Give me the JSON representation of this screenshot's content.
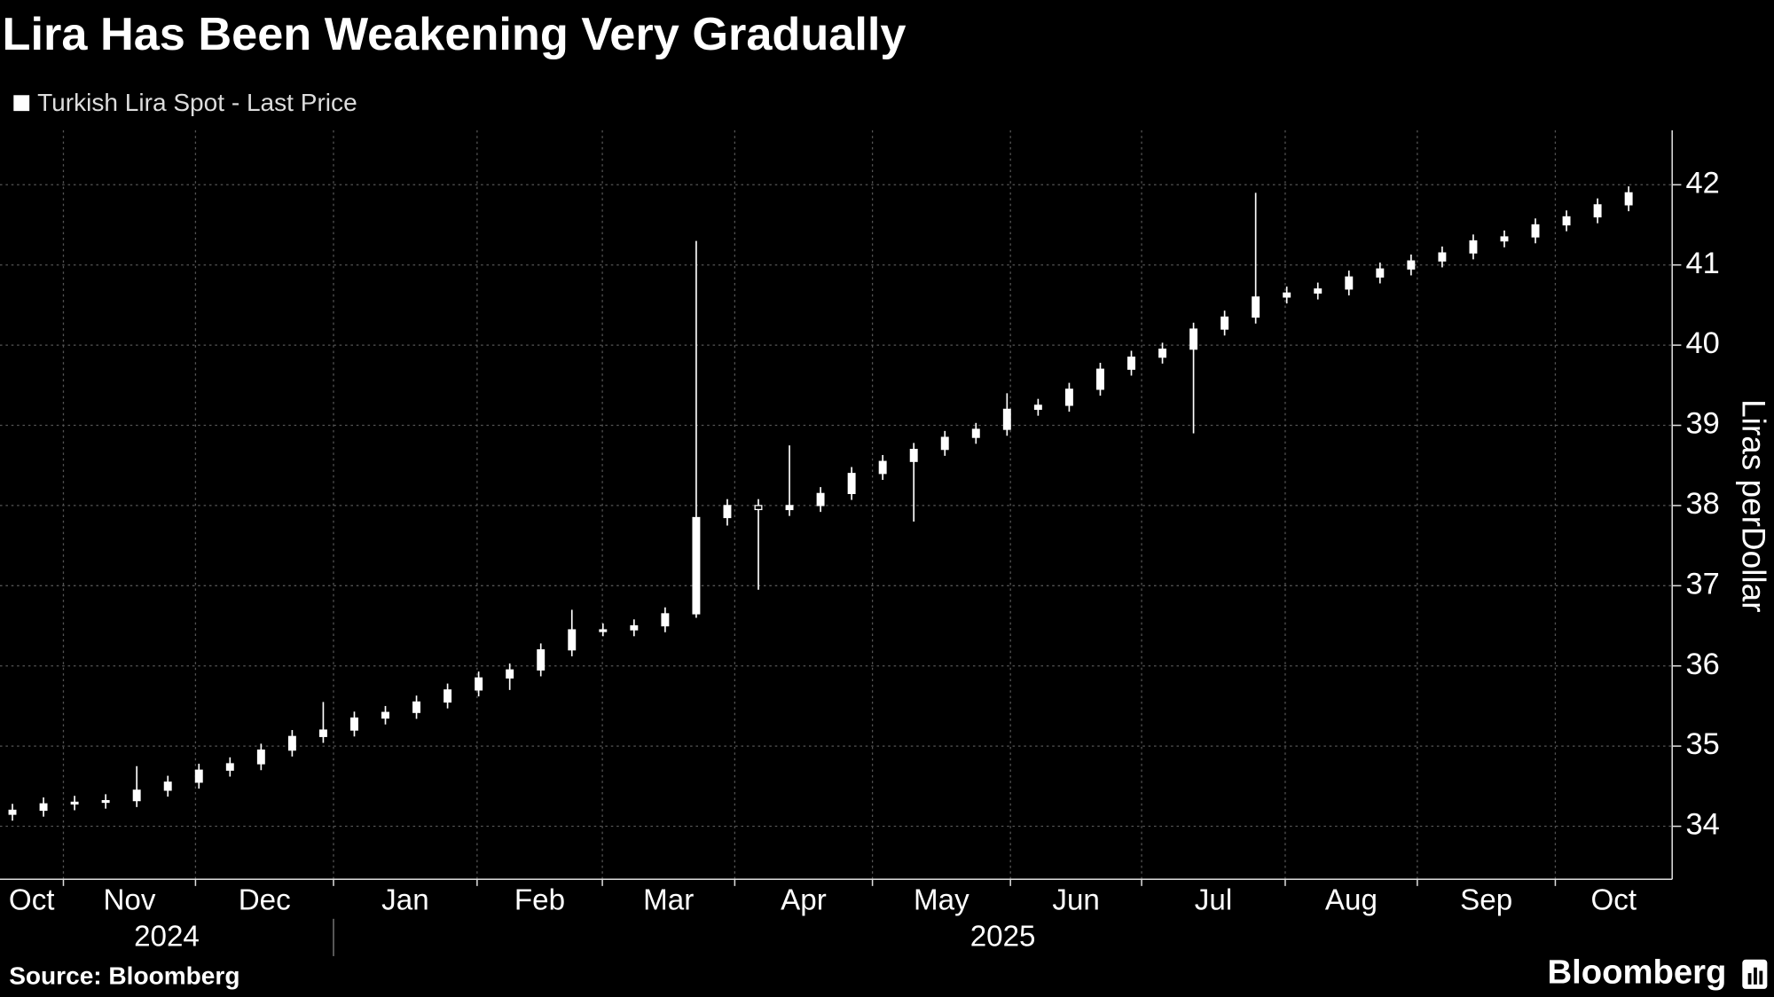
{
  "chart_data": {
    "type": "candlestick",
    "title": "Lira Has Been Weakening Very Gradually",
    "y_label": "Liras perDollar",
    "source": "Source: Bloomberg",
    "brand": "Bloomberg",
    "categories": [
      null,
      null,
      null,
      null,
      null,
      null,
      null,
      null,
      null,
      null,
      null,
      null,
      null,
      null,
      null,
      null,
      null,
      null,
      null,
      null,
      null,
      null,
      null,
      null,
      null,
      null,
      null,
      null,
      null,
      null,
      null,
      null,
      null,
      null,
      null,
      null,
      null,
      null,
      null,
      null,
      null,
      null,
      null,
      null,
      null,
      null,
      null,
      null,
      null,
      null,
      null,
      null,
      null
    ],
    "series": [
      {
        "name": "Turkish Lira Spot - Last Price",
        "color": "#ffffff",
        "open": [
          34.15,
          34.2,
          34.28,
          34.3,
          34.32,
          34.45,
          34.55,
          34.7,
          34.78,
          34.95,
          35.12,
          35.2,
          35.35,
          35.42,
          35.55,
          35.7,
          35.85,
          35.95,
          36.2,
          36.45,
          36.45,
          36.5,
          36.65,
          37.85,
          38.0,
          37.95,
          38.0,
          38.15,
          38.4,
          38.55,
          38.7,
          38.85,
          38.95,
          39.2,
          39.25,
          39.45,
          39.7,
          39.85,
          39.95,
          40.2,
          40.35,
          40.6,
          40.65,
          40.7,
          40.85,
          40.95,
          41.05,
          41.15,
          41.3,
          41.35,
          41.5,
          41.6,
          41.75
        ],
        "high": [
          34.28,
          34.36,
          34.38,
          34.4,
          34.75,
          34.63,
          34.78,
          34.86,
          35.03,
          35.2,
          35.55,
          35.43,
          35.5,
          35.63,
          35.78,
          35.93,
          36.03,
          36.28,
          36.7,
          36.53,
          36.58,
          36.73,
          41.3,
          38.08,
          38.08,
          38.75,
          38.23,
          38.48,
          38.63,
          38.78,
          38.93,
          39.03,
          39.4,
          39.33,
          39.53,
          39.78,
          39.93,
          40.03,
          40.28,
          40.43,
          41.9,
          40.73,
          40.78,
          40.93,
          41.03,
          41.13,
          41.23,
          41.38,
          41.43,
          41.58,
          41.68,
          41.83,
          41.98
        ],
        "low": [
          34.07,
          34.12,
          34.2,
          34.22,
          34.24,
          34.37,
          34.47,
          34.62,
          34.7,
          34.87,
          35.04,
          35.12,
          35.27,
          35.34,
          35.47,
          35.62,
          35.7,
          35.87,
          36.12,
          36.37,
          36.37,
          36.42,
          36.6,
          37.75,
          36.95,
          37.87,
          37.92,
          38.07,
          38.32,
          37.8,
          38.62,
          38.77,
          38.87,
          39.12,
          39.17,
          39.37,
          39.62,
          39.77,
          38.9,
          40.12,
          40.27,
          40.52,
          40.57,
          40.62,
          40.77,
          40.87,
          40.97,
          41.07,
          41.22,
          41.27,
          41.42,
          41.52,
          41.67
        ],
        "close": [
          34.2,
          34.28,
          34.3,
          34.32,
          34.45,
          34.55,
          34.7,
          34.78,
          34.95,
          35.12,
          35.2,
          35.35,
          35.42,
          35.55,
          35.7,
          35.85,
          35.95,
          36.2,
          36.45,
          36.45,
          36.5,
          36.65,
          37.85,
          38.0,
          37.95,
          38.0,
          38.15,
          38.4,
          38.55,
          38.7,
          38.85,
          38.95,
          39.2,
          39.25,
          39.45,
          39.7,
          39.85,
          39.95,
          40.2,
          40.35,
          40.6,
          40.65,
          40.7,
          40.85,
          40.95,
          41.05,
          41.15,
          41.3,
          41.35,
          41.5,
          41.6,
          41.75,
          41.9
        ]
      }
    ],
    "xlim": [
      -0.4,
      53.4
    ],
    "xticks": [
      {
        "value": -2.79,
        "label": "Oct"
      },
      {
        "value": 1.64,
        "label": "Nov"
      },
      {
        "value": 5.89,
        "label": "Dec"
      },
      {
        "value": 10.33,
        "label": "Jan"
      },
      {
        "value": 14.95,
        "label": "Feb"
      },
      {
        "value": 18.98,
        "label": "Mar"
      },
      {
        "value": 23.24,
        "label": "Apr"
      },
      {
        "value": 27.67,
        "label": "May"
      },
      {
        "value": 32.11,
        "label": "Jun"
      },
      {
        "value": 36.33,
        "label": "Jul"
      },
      {
        "value": 40.95,
        "label": "Aug"
      },
      {
        "value": 45.2,
        "label": "Sep"
      },
      {
        "value": 49.64,
        "label": "Oct"
      }
    ],
    "years": [
      {
        "value": -2.79,
        "label": "2024"
      },
      {
        "value": 10.33,
        "label": "2025"
      }
    ],
    "ylim": [
      33.34,
      42.68
    ],
    "yticks": [
      34,
      35,
      36,
      37,
      38,
      39,
      40,
      41,
      42
    ],
    "grid": true
  }
}
